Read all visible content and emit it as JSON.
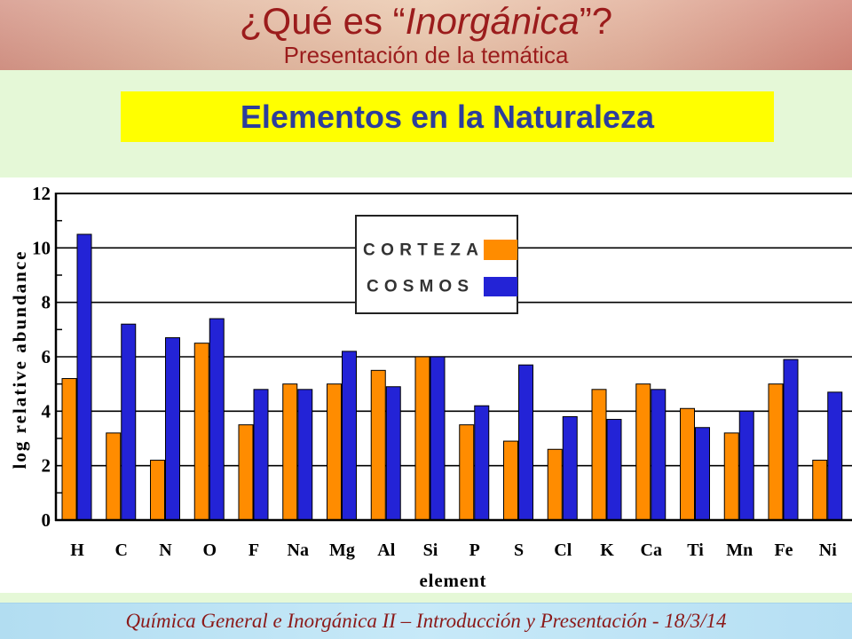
{
  "header": {
    "title_before": "¿Qué es “",
    "title_italic": "Inorgánica",
    "title_after": "”?",
    "subtitle": "Presentación de la temática"
  },
  "chart_data": {
    "type": "bar",
    "title": "Elementos en la Naturaleza",
    "xlabel": "element",
    "ylabel": "log relative abundance",
    "categories": [
      "H",
      "C",
      "N",
      "O",
      "F",
      "Na",
      "Mg",
      "Al",
      "Si",
      "P",
      "S",
      "Cl",
      "K",
      "Ca",
      "Ti",
      "Mn",
      "Fe",
      "Ni"
    ],
    "series": [
      {
        "name": "CORTEZA",
        "color": "#ff8c00",
        "values": [
          5.2,
          3.2,
          2.2,
          6.5,
          3.5,
          5.0,
          5.0,
          5.5,
          6.0,
          3.5,
          2.9,
          2.6,
          4.8,
          5.0,
          4.1,
          3.2,
          5.0,
          2.2
        ]
      },
      {
        "name": "COSMOS",
        "color": "#2323d6",
        "values": [
          10.5,
          7.2,
          6.7,
          7.4,
          4.8,
          4.8,
          6.2,
          4.9,
          6.0,
          4.2,
          5.7,
          3.8,
          3.7,
          4.8,
          3.4,
          4.0,
          5.9,
          4.7
        ]
      }
    ],
    "ylim": [
      0,
      12
    ],
    "yticks": [
      0,
      2,
      4,
      6,
      8,
      10,
      12
    ],
    "grid": true,
    "legend_position": "top-center"
  },
  "footer": {
    "text": "Química General e Inorgánica II – Introducción y Presentación - 18/3/14"
  },
  "colors": {
    "title": "#9b1c1c",
    "banner_background": "#ffff00",
    "banner_text": "#2c3d9c",
    "slide_background": "#e5f8d7",
    "footer_text": "#8b1a1a"
  }
}
